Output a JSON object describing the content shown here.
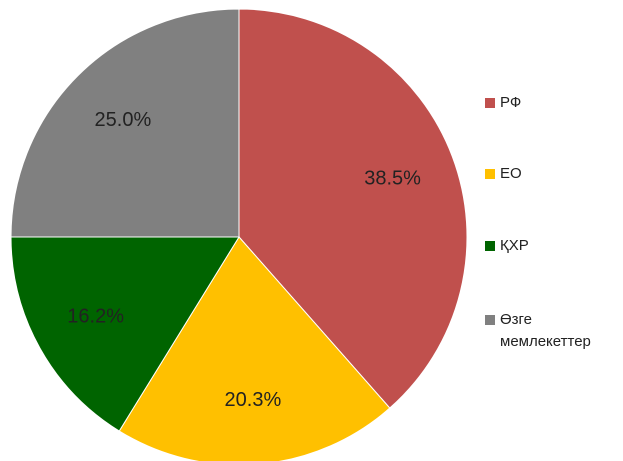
{
  "chart_data": {
    "type": "pie",
    "categories": [
      "РФ",
      "ЕО",
      "ҚХР",
      "Өзге мемлекеттер"
    ],
    "values": [
      38.5,
      20.3,
      16.2,
      25.0
    ],
    "value_labels": [
      "38.5%",
      "20.3%",
      "16.2%",
      "25.0%"
    ],
    "colors": [
      "#c0504d",
      "#ffc000",
      "#006400",
      "#808080"
    ],
    "legend": "right"
  }
}
